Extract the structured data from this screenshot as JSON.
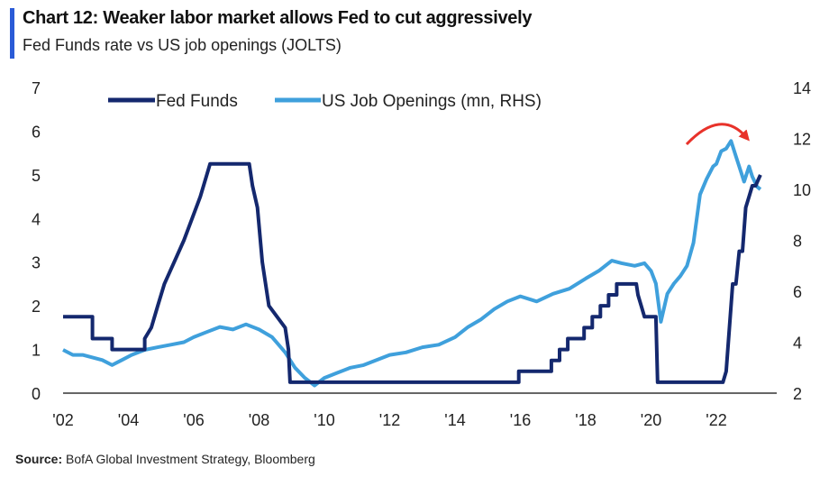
{
  "header": {
    "title": "Chart 12: Weaker labor market allows Fed to cut aggressively",
    "subtitle": "Fed Funds rate vs US job openings (JOLTS)"
  },
  "footer": {
    "source_label": "Source:",
    "source_text": "BofA Global Investment Strategy, Bloomberg"
  },
  "colors": {
    "fed_funds": "#14286e",
    "job_openings": "#3fa0dc",
    "arrow": "#e8322a",
    "axis": "#666666",
    "accent": "#2a5bd7"
  },
  "chart_data": {
    "type": "line",
    "title": "Chart 12: Weaker labor market allows Fed to cut aggressively",
    "subtitle": "Fed Funds rate vs US job openings (JOLTS)",
    "xlabel": "",
    "ylabel": "",
    "xlim": [
      2002,
      2023.8
    ],
    "ylim_left": [
      0,
      7
    ],
    "ylim_right": [
      2,
      14
    ],
    "x_ticks": [
      2002,
      2004,
      2006,
      2008,
      2010,
      2012,
      2014,
      2016,
      2018,
      2020,
      2022
    ],
    "x_tick_labels": [
      "'02",
      "'04",
      "'06",
      "'08",
      "'10",
      "'12",
      "'14",
      "'16",
      "'18",
      "'20",
      "'22"
    ],
    "y_left_ticks": [
      "0",
      "1",
      "2",
      "3",
      "4",
      "5",
      "6",
      "7"
    ],
    "y_right_ticks": [
      "2",
      "4",
      "6",
      "8",
      "10",
      "12",
      "14"
    ],
    "grid": false,
    "legend_position": "top-left",
    "annotation": "red arrow indicating peak and decline of job openings in 2022-23",
    "series": [
      {
        "name": "Fed Funds",
        "axis": "left",
        "points": [
          [
            2002,
            1.75
          ],
          [
            2002.9,
            1.75
          ],
          [
            2002.9,
            1.25
          ],
          [
            2003.5,
            1.25
          ],
          [
            2003.5,
            1.0
          ],
          [
            2004.5,
            1.0
          ],
          [
            2004.5,
            1.25
          ],
          [
            2004.7,
            1.5
          ],
          [
            2004.9,
            2.0
          ],
          [
            2005.1,
            2.5
          ],
          [
            2005.4,
            3.0
          ],
          [
            2005.7,
            3.5
          ],
          [
            2005.95,
            4.0
          ],
          [
            2006.2,
            4.5
          ],
          [
            2006.4,
            5.0
          ],
          [
            2006.5,
            5.25
          ],
          [
            2007.7,
            5.25
          ],
          [
            2007.8,
            4.75
          ],
          [
            2007.95,
            4.25
          ],
          [
            2008.1,
            3.0
          ],
          [
            2008.3,
            2.0
          ],
          [
            2008.8,
            1.5
          ],
          [
            2008.9,
            1.0
          ],
          [
            2008.95,
            0.25
          ],
          [
            2015.95,
            0.25
          ],
          [
            2015.95,
            0.5
          ],
          [
            2016.95,
            0.5
          ],
          [
            2016.95,
            0.75
          ],
          [
            2017.2,
            0.75
          ],
          [
            2017.2,
            1.0
          ],
          [
            2017.45,
            1.0
          ],
          [
            2017.45,
            1.25
          ],
          [
            2017.95,
            1.25
          ],
          [
            2017.95,
            1.5
          ],
          [
            2018.2,
            1.5
          ],
          [
            2018.2,
            1.75
          ],
          [
            2018.45,
            1.75
          ],
          [
            2018.45,
            2.0
          ],
          [
            2018.7,
            2.0
          ],
          [
            2018.7,
            2.25
          ],
          [
            2018.95,
            2.25
          ],
          [
            2018.95,
            2.5
          ],
          [
            2019.55,
            2.5
          ],
          [
            2019.6,
            2.25
          ],
          [
            2019.7,
            2.0
          ],
          [
            2019.8,
            1.75
          ],
          [
            2020.15,
            1.75
          ],
          [
            2020.2,
            0.25
          ],
          [
            2022.2,
            0.25
          ],
          [
            2022.3,
            0.5
          ],
          [
            2022.4,
            1.5
          ],
          [
            2022.5,
            2.5
          ],
          [
            2022.6,
            2.5
          ],
          [
            2022.7,
            3.25
          ],
          [
            2022.8,
            3.25
          ],
          [
            2022.9,
            4.25
          ],
          [
            2023.0,
            4.5
          ],
          [
            2023.1,
            4.75
          ],
          [
            2023.2,
            4.75
          ],
          [
            2023.35,
            5.0
          ]
        ]
      },
      {
        "name": "US Job Openings (mn, RHS)",
        "axis": "right",
        "points": [
          [
            2002,
            3.7
          ],
          [
            2002.3,
            3.5
          ],
          [
            2002.6,
            3.5
          ],
          [
            2002.9,
            3.4
          ],
          [
            2003.2,
            3.3
          ],
          [
            2003.5,
            3.1
          ],
          [
            2003.8,
            3.3
          ],
          [
            2004.1,
            3.5
          ],
          [
            2004.5,
            3.7
          ],
          [
            2004.9,
            3.8
          ],
          [
            2005.3,
            3.9
          ],
          [
            2005.7,
            4.0
          ],
          [
            2006.0,
            4.2
          ],
          [
            2006.4,
            4.4
          ],
          [
            2006.8,
            4.6
          ],
          [
            2007.2,
            4.5
          ],
          [
            2007.6,
            4.7
          ],
          [
            2008.0,
            4.5
          ],
          [
            2008.4,
            4.2
          ],
          [
            2008.8,
            3.6
          ],
          [
            2009.1,
            3.0
          ],
          [
            2009.4,
            2.6
          ],
          [
            2009.7,
            2.3
          ],
          [
            2010.0,
            2.6
          ],
          [
            2010.4,
            2.8
          ],
          [
            2010.8,
            3.0
          ],
          [
            2011.2,
            3.1
          ],
          [
            2011.6,
            3.3
          ],
          [
            2012.0,
            3.5
          ],
          [
            2012.5,
            3.6
          ],
          [
            2013.0,
            3.8
          ],
          [
            2013.5,
            3.9
          ],
          [
            2014.0,
            4.2
          ],
          [
            2014.4,
            4.6
          ],
          [
            2014.8,
            4.9
          ],
          [
            2015.2,
            5.3
          ],
          [
            2015.6,
            5.6
          ],
          [
            2016.0,
            5.8
          ],
          [
            2016.5,
            5.6
          ],
          [
            2017.0,
            5.9
          ],
          [
            2017.5,
            6.1
          ],
          [
            2018.0,
            6.5
          ],
          [
            2018.4,
            6.8
          ],
          [
            2018.8,
            7.2
          ],
          [
            2019.1,
            7.1
          ],
          [
            2019.5,
            7.0
          ],
          [
            2019.8,
            7.1
          ],
          [
            2020.0,
            6.8
          ],
          [
            2020.15,
            6.3
          ],
          [
            2020.3,
            4.8
          ],
          [
            2020.5,
            5.9
          ],
          [
            2020.7,
            6.3
          ],
          [
            2020.9,
            6.6
          ],
          [
            2021.1,
            7.0
          ],
          [
            2021.3,
            7.9
          ],
          [
            2021.5,
            9.8
          ],
          [
            2021.7,
            10.4
          ],
          [
            2021.9,
            10.9
          ],
          [
            2022.0,
            11.0
          ],
          [
            2022.15,
            11.5
          ],
          [
            2022.3,
            11.6
          ],
          [
            2022.45,
            11.9
          ],
          [
            2022.6,
            11.3
          ],
          [
            2022.75,
            10.7
          ],
          [
            2022.85,
            10.3
          ],
          [
            2023.0,
            10.9
          ],
          [
            2023.1,
            10.5
          ],
          [
            2023.25,
            10.1
          ],
          [
            2023.35,
            10.0
          ]
        ]
      }
    ]
  }
}
